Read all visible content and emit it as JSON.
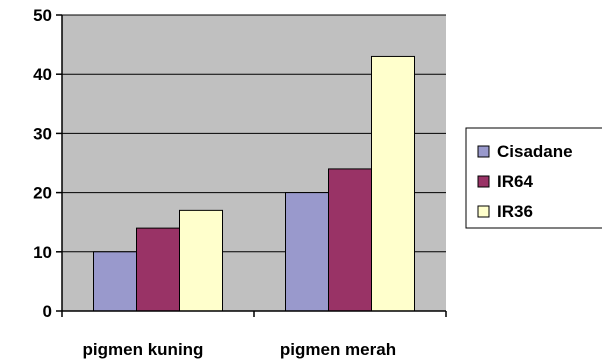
{
  "chart_data": {
    "type": "bar",
    "categories": [
      "pigmen kuning",
      "pigmen merah"
    ],
    "series": [
      {
        "name": "Cisadane",
        "values": [
          10,
          20
        ],
        "color": "#9999CC"
      },
      {
        "name": "IR64",
        "values": [
          14,
          24
        ],
        "color": "#993366"
      },
      {
        "name": "IR36",
        "values": [
          17,
          43
        ],
        "color": "#FFFFCC"
      }
    ],
    "ylim": [
      0,
      50
    ],
    "yticks": [
      "0",
      "10",
      "20",
      "30",
      "40",
      "50"
    ],
    "grid": true,
    "plot_background": "#C0C0C0",
    "legend_position": "right"
  }
}
